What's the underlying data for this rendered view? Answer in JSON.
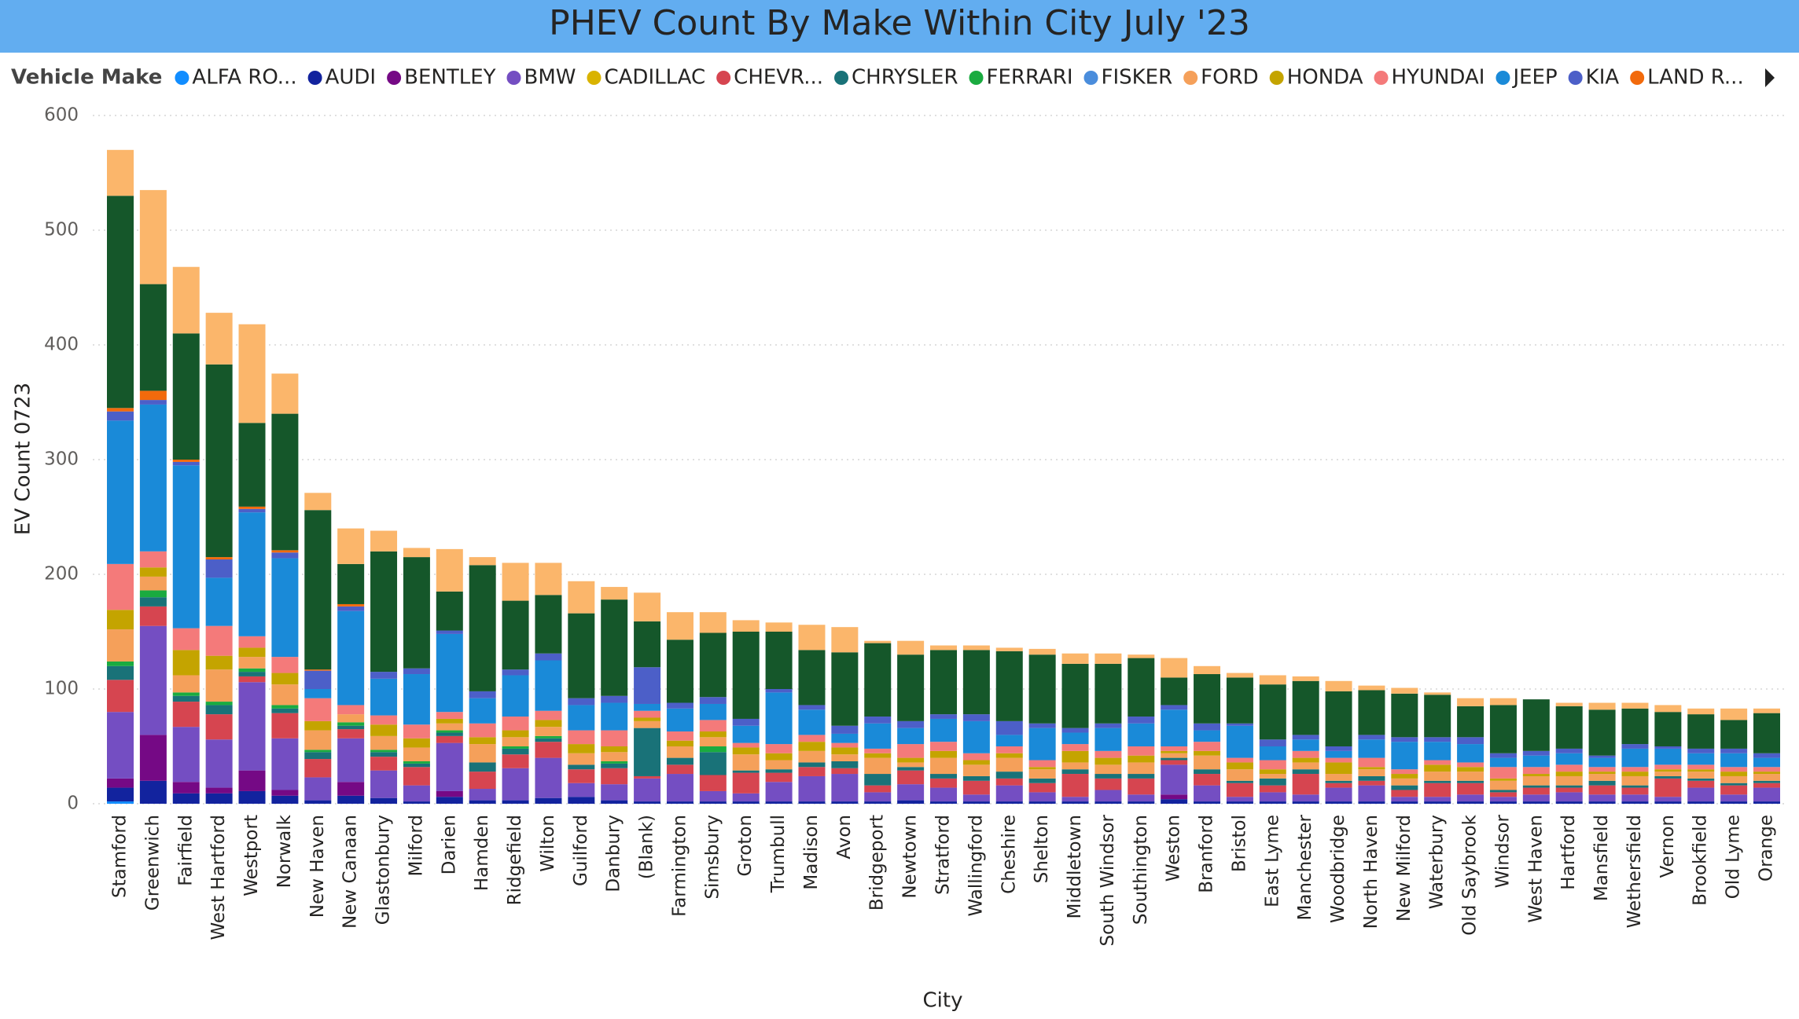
{
  "chart_data": {
    "type": "bar",
    "stacked": true,
    "title": "PHEV Count By Make Within City July '23",
    "legend_title": "Vehicle Make",
    "x_label": "City",
    "y_label": "EV Count 0723",
    "ylim": [
      0,
      600
    ],
    "yticks": [
      0,
      100,
      200,
      300,
      400,
      500,
      600
    ],
    "grid": true,
    "categories": [
      "Stamford",
      "Greenwich",
      "Fairfield",
      "West Hartford",
      "Westport",
      "Norwalk",
      "New Haven",
      "New Canaan",
      "Glastonbury",
      "Milford",
      "Darien",
      "Hamden",
      "Ridgefield",
      "Wilton",
      "Guilford",
      "Danbury",
      "(Blank)",
      "Farmington",
      "Simsbury",
      "Groton",
      "Trumbull",
      "Madison",
      "Avon",
      "Bridgeport",
      "Newtown",
      "Stratford",
      "Wallingford",
      "Cheshire",
      "Shelton",
      "Middletown",
      "South Windsor",
      "Southington",
      "Weston",
      "Branford",
      "Bristol",
      "East Lyme",
      "Manchester",
      "Woodbridge",
      "North Haven",
      "New Milford",
      "Waterbury",
      "Old Saybrook",
      "Windsor",
      "West Haven",
      "Hartford",
      "Mansfield",
      "Wethersfield",
      "Vernon",
      "Brookfield",
      "Old Lyme",
      "Orange"
    ],
    "series": [
      {
        "name": "ALFA RO...",
        "color": "#118dff",
        "values": [
          2,
          0,
          0,
          0,
          0,
          0,
          0,
          0,
          0,
          0,
          0,
          0,
          0,
          0,
          0,
          0,
          0,
          0,
          0,
          0,
          0,
          0,
          0,
          0,
          0,
          0,
          0,
          0,
          0,
          0,
          0,
          0,
          0,
          0,
          0,
          0,
          0,
          0,
          0,
          0,
          0,
          0,
          0,
          0,
          0,
          0,
          0,
          0,
          0,
          0,
          0
        ]
      },
      {
        "name": "AUDI",
        "color": "#12239e",
        "values": [
          12,
          20,
          9,
          9,
          11,
          7,
          3,
          7,
          5,
          2,
          6,
          3,
          3,
          5,
          6,
          3,
          2,
          2,
          2,
          2,
          2,
          2,
          2,
          2,
          3,
          2,
          2,
          2,
          2,
          2,
          2,
          2,
          4,
          2,
          2,
          2,
          2,
          2,
          2,
          2,
          2,
          2,
          2,
          2,
          2,
          2,
          2,
          2,
          2,
          2,
          2
        ]
      },
      {
        "name": "BENTLEY",
        "color": "#750985",
        "values": [
          8,
          40,
          10,
          5,
          18,
          5,
          0,
          12,
          0,
          0,
          5,
          0,
          0,
          0,
          0,
          0,
          0,
          0,
          0,
          0,
          0,
          0,
          0,
          0,
          0,
          0,
          0,
          0,
          0,
          0,
          0,
          0,
          4,
          0,
          0,
          0,
          0,
          0,
          0,
          0,
          0,
          0,
          0,
          0,
          0,
          0,
          0,
          0,
          0,
          0,
          0
        ]
      },
      {
        "name": "BMW",
        "color": "#744ec2",
        "values": [
          58,
          95,
          48,
          42,
          77,
          45,
          20,
          38,
          24,
          14,
          42,
          10,
          28,
          35,
          12,
          14,
          20,
          24,
          9,
          7,
          17,
          22,
          24,
          8,
          14,
          12,
          6,
          14,
          8,
          4,
          10,
          6,
          26,
          14,
          4,
          8,
          6,
          12,
          14,
          4,
          4,
          6,
          4,
          6,
          8,
          6,
          6,
          4,
          12,
          6,
          12
        ]
      },
      {
        "name": "CADILLAC",
        "color": "#d9b300",
        "values": [
          0,
          0,
          0,
          0,
          0,
          0,
          0,
          0,
          0,
          0,
          0,
          0,
          0,
          0,
          0,
          0,
          0,
          0,
          0,
          0,
          0,
          0,
          0,
          0,
          0,
          0,
          0,
          0,
          0,
          0,
          0,
          0,
          0,
          0,
          0,
          0,
          0,
          0,
          0,
          0,
          0,
          0,
          0,
          0,
          0,
          0,
          0,
          0,
          0,
          0,
          0
        ]
      },
      {
        "name": "CHEVR...",
        "color": "#d64550",
        "values": [
          28,
          17,
          22,
          22,
          5,
          22,
          16,
          8,
          12,
          16,
          6,
          15,
          12,
          14,
          12,
          14,
          2,
          8,
          14,
          18,
          8,
          8,
          5,
          6,
          12,
          8,
          12,
          6,
          8,
          20,
          10,
          14,
          4,
          10,
          12,
          6,
          18,
          4,
          4,
          6,
          12,
          10,
          4,
          6,
          4,
          8,
          6,
          16,
          6,
          8,
          4
        ]
      },
      {
        "name": "CHRYSLER",
        "color": "#197278",
        "values": [
          12,
          8,
          5,
          8,
          4,
          4,
          6,
          3,
          4,
          3,
          3,
          8,
          5,
          3,
          4,
          4,
          42,
          6,
          20,
          2,
          3,
          4,
          6,
          10,
          3,
          4,
          4,
          6,
          4,
          4,
          4,
          4,
          2,
          4,
          2,
          6,
          4,
          2,
          4,
          4,
          2,
          2,
          2,
          2,
          2,
          4,
          2,
          2,
          2,
          2,
          2
        ]
      },
      {
        "name": "FERRARI",
        "color": "#1aab40",
        "values": [
          4,
          6,
          3,
          3,
          3,
          3,
          2,
          3,
          2,
          2,
          2,
          0,
          2,
          2,
          0,
          2,
          0,
          0,
          5,
          0,
          0,
          0,
          0,
          0,
          0,
          0,
          0,
          0,
          0,
          0,
          0,
          0,
          0,
          0,
          0,
          0,
          0,
          0,
          0,
          0,
          0,
          0,
          0,
          0,
          0,
          0,
          0,
          0,
          0,
          0,
          0
        ]
      },
      {
        "name": "FISKER",
        "color": "#4a8ddc",
        "values": [
          0,
          0,
          0,
          0,
          0,
          0,
          0,
          0,
          0,
          0,
          0,
          0,
          0,
          0,
          0,
          0,
          0,
          0,
          0,
          0,
          0,
          0,
          0,
          0,
          0,
          0,
          0,
          0,
          0,
          0,
          0,
          0,
          0,
          0,
          0,
          0,
          0,
          0,
          0,
          0,
          0,
          0,
          0,
          0,
          0,
          0,
          0,
          0,
          0,
          0,
          0
        ]
      },
      {
        "name": "FORD",
        "color": "#f5a05a",
        "values": [
          28,
          12,
          15,
          28,
          10,
          18,
          17,
          7,
          12,
          12,
          6,
          16,
          8,
          8,
          10,
          8,
          6,
          10,
          8,
          14,
          8,
          10,
          6,
          14,
          4,
          14,
          10,
          12,
          8,
          6,
          8,
          10,
          4,
          12,
          10,
          4,
          6,
          6,
          6,
          6,
          8,
          8,
          8,
          8,
          8,
          6,
          8,
          4,
          6,
          6,
          6
        ]
      },
      {
        "name": "HONDA",
        "color": "#c4a400",
        "values": [
          17,
          8,
          22,
          12,
          8,
          10,
          8,
          0,
          10,
          8,
          4,
          6,
          6,
          6,
          8,
          5,
          3,
          5,
          5,
          6,
          6,
          8,
          6,
          4,
          4,
          6,
          4,
          4,
          2,
          10,
          6,
          6,
          2,
          4,
          6,
          4,
          4,
          10,
          2,
          4,
          6,
          4,
          2,
          2,
          4,
          2,
          4,
          2,
          2,
          4,
          2
        ]
      },
      {
        "name": "HYUNDAI",
        "color": "#f47a7a",
        "values": [
          40,
          14,
          19,
          26,
          10,
          14,
          20,
          8,
          8,
          12,
          6,
          12,
          12,
          8,
          12,
          14,
          6,
          8,
          10,
          4,
          8,
          6,
          4,
          4,
          12,
          8,
          6,
          6,
          6,
          6,
          6,
          8,
          4,
          8,
          4,
          8,
          6,
          4,
          8,
          4,
          4,
          4,
          10,
          6,
          6,
          4,
          4,
          4,
          4,
          4,
          4
        ]
      },
      {
        "name": "JEEP",
        "color": "#1a8ad8",
        "values": [
          125,
          128,
          142,
          42,
          108,
          86,
          8,
          82,
          32,
          44,
          68,
          22,
          36,
          44,
          22,
          24,
          6,
          20,
          14,
          15,
          45,
          22,
          8,
          22,
          14,
          20,
          28,
          10,
          28,
          10,
          20,
          20,
          32,
          10,
          28,
          12,
          10,
          6,
          16,
          24,
          16,
          16,
          8,
          10,
          10,
          8,
          16,
          14,
          10,
          12,
          8
        ]
      },
      {
        "name": "KIA",
        "color": "#4c5fc8",
        "values": [
          8,
          4,
          3,
          16,
          3,
          5,
          16,
          4,
          6,
          5,
          3,
          6,
          5,
          6,
          6,
          6,
          32,
          5,
          6,
          6,
          3,
          4,
          7,
          6,
          6,
          4,
          6,
          12,
          4,
          4,
          4,
          6,
          4,
          6,
          2,
          6,
          4,
          4,
          4,
          4,
          4,
          6,
          4,
          4,
          4,
          2,
          4,
          2,
          4,
          4,
          4
        ]
      },
      {
        "name": "LAND R...",
        "color": "#f26a0c",
        "values": [
          3,
          8,
          2,
          2,
          2,
          2,
          1,
          2,
          0,
          0,
          0,
          0,
          0,
          0,
          0,
          0,
          0,
          0,
          0,
          0,
          0,
          0,
          0,
          0,
          0,
          0,
          0,
          0,
          0,
          0,
          0,
          0,
          0,
          0,
          0,
          0,
          0,
          0,
          0,
          0,
          0,
          0,
          0,
          0,
          0,
          0,
          0,
          0,
          0,
          0,
          0
        ]
      },
      {
        "color": "#15572a",
        "values": [
          185,
          93,
          110,
          168,
          73,
          119,
          139,
          35,
          105,
          97,
          34,
          110,
          60,
          51,
          74,
          84,
          40,
          55,
          56,
          76,
          50,
          48,
          64,
          64,
          58,
          56,
          56,
          61,
          60,
          56,
          52,
          51,
          24,
          43,
          40,
          48,
          47,
          48,
          39,
          38,
          37,
          27,
          42,
          45,
          37,
          40,
          31,
          30,
          30,
          25,
          35
        ]
      },
      {
        "color": "#fbb66b",
        "values": [
          40,
          82,
          58,
          45,
          86,
          35,
          15,
          31,
          18,
          8,
          37,
          7,
          33,
          28,
          28,
          11,
          25,
          24,
          18,
          10,
          8,
          22,
          22,
          2,
          12,
          4,
          4,
          3,
          5,
          9,
          9,
          3,
          17,
          7,
          4,
          8,
          4,
          9,
          4,
          5,
          2,
          7,
          6,
          0,
          3,
          6,
          5,
          6,
          5,
          10,
          4
        ]
      }
    ]
  }
}
